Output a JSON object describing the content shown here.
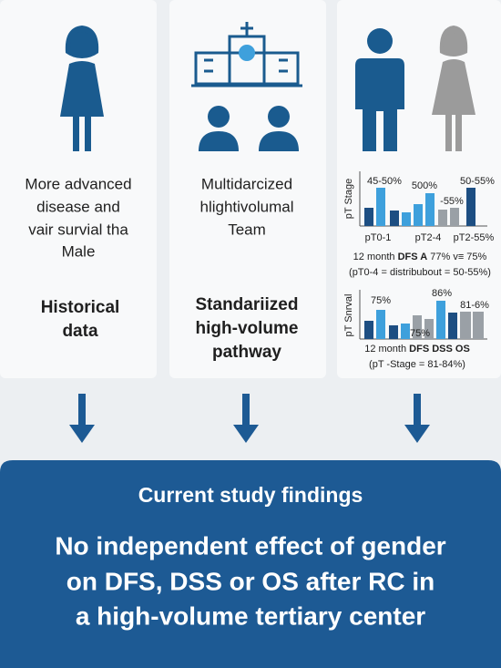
{
  "panels": [
    {
      "text": [
        "More advanced",
        "disease and",
        "vair survial tha",
        "Male"
      ],
      "heading": [
        "Historical",
        "data"
      ]
    },
    {
      "text": [
        "Multidarcized",
        "hlightivolumal",
        "Team"
      ],
      "heading": [
        "Standariized",
        "high-volume",
        "pathway"
      ]
    },
    {
      "charts": [
        {
          "axis_label": "pT Stage",
          "labels": [
            "45-50%",
            "500%",
            "-55%",
            "50-55%"
          ],
          "categories": [
            "pT0-1",
            "pT2-4",
            "pT2-55%"
          ],
          "summary": {
            "prefix": "12 month",
            "bold": "DFS A",
            "suffix": "77% v≡ 75%"
          },
          "note": "(pT0-4 = distribubout = 50-55%)"
        },
        {
          "axis_label": "pT Snrval",
          "labels": [
            "75%",
            "75%",
            "86%",
            "81-6%"
          ],
          "summary": {
            "prefix": "12 month",
            "bold": "DFS DSS OS",
            "suffix": ""
          },
          "note": "(pT -Stage = 81-84%)"
        }
      ]
    }
  ],
  "findings": {
    "title": "Current study findings",
    "body": [
      "No independent effect of gender",
      "on DFS, DSS or OS after RC in",
      "a high-volume tertiary center"
    ]
  }
}
